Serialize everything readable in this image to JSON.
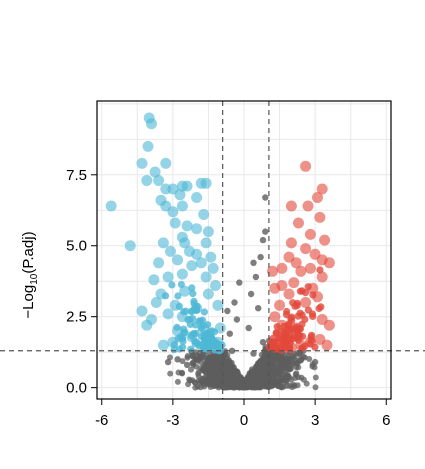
{
  "chart_data": {
    "type": "scatter",
    "title": "",
    "xlabel": "",
    "ylabel_parts": {
      "pre": "−Log",
      "sub": "10",
      "post": "(P.adj)"
    },
    "xlim": [
      -6.2,
      6.2
    ],
    "ylim": [
      -0.4,
      10.1
    ],
    "x_ticks": [
      -6,
      -3,
      0,
      3,
      6
    ],
    "y_ticks": [
      0.0,
      2.5,
      5.0,
      7.5
    ],
    "x_tick_labels": [
      "-6",
      "-3",
      "0",
      "3",
      "6"
    ],
    "y_tick_labels": [
      "0.0",
      "2.5",
      "5.0",
      "7.5"
    ],
    "grid": true,
    "thresholds": {
      "fc_low": -0.9,
      "fc_high": 1.05,
      "p": 1.3
    },
    "colors": {
      "down": "#4db8d6",
      "up": "#e2493b",
      "ns": "#5e5e5e",
      "grid": "#e8e8e8",
      "threshold": "#555555"
    },
    "series": [
      {
        "group": "down",
        "points": [
          [
            -3.9,
            9.3
          ],
          [
            -4.0,
            9.5
          ],
          [
            -4.05,
            8.5
          ],
          [
            -3.3,
            7.9
          ],
          [
            -4.3,
            7.9
          ],
          [
            -3.75,
            7.6
          ],
          [
            -3.6,
            7.3
          ],
          [
            -4.1,
            7.3
          ],
          [
            -3.3,
            7.0
          ],
          [
            -3.0,
            7.0
          ],
          [
            -2.6,
            7.1
          ],
          [
            -2.4,
            7.1
          ],
          [
            -1.8,
            7.2
          ],
          [
            -1.6,
            7.2
          ],
          [
            -2.7,
            6.8
          ],
          [
            -2.0,
            6.7
          ],
          [
            -3.5,
            6.6
          ],
          [
            -5.6,
            6.4
          ],
          [
            -3.3,
            6.4
          ],
          [
            -2.6,
            6.4
          ],
          [
            -3.0,
            6.2
          ],
          [
            -1.7,
            6.1
          ],
          [
            -2.9,
            5.8
          ],
          [
            -2.4,
            5.7
          ],
          [
            -2.0,
            5.6
          ],
          [
            -1.5,
            5.5
          ],
          [
            -2.6,
            5.3
          ],
          [
            -3.4,
            5.1
          ],
          [
            -2.5,
            5.1
          ],
          [
            -1.6,
            5.1
          ],
          [
            -4.8,
            5.0
          ],
          [
            -3.1,
            4.8
          ],
          [
            -2.3,
            4.8
          ],
          [
            -2.0,
            4.7
          ],
          [
            -1.4,
            4.6
          ],
          [
            -2.8,
            4.5
          ],
          [
            -3.6,
            4.4
          ],
          [
            -1.8,
            4.4
          ],
          [
            -2.2,
            4.3
          ],
          [
            -1.3,
            4.2
          ],
          [
            -3.8,
            3.8
          ],
          [
            -3.2,
            3.9
          ],
          [
            -2.6,
            4.0
          ],
          [
            -1.6,
            3.9
          ],
          [
            -1.2,
            3.6
          ],
          [
            -4.3,
            2.7
          ],
          [
            -3.9,
            2.4
          ],
          [
            -4.1,
            2.2
          ],
          [
            -3.7,
            3.0
          ],
          [
            -3.5,
            3.3
          ],
          [
            -2.9,
            2.9
          ],
          [
            -2.5,
            3.4
          ],
          [
            -1.5,
            3.3
          ],
          [
            -1.1,
            2.9
          ],
          [
            -1.0,
            2.1
          ],
          [
            -1.1,
            1.6
          ],
          [
            -1.4,
            1.5
          ],
          [
            -3.4,
            1.5
          ],
          [
            -3.0,
            1.6
          ],
          [
            -2.8,
            2.0
          ],
          [
            -2.2,
            1.8
          ],
          [
            -3.2,
            2.6
          ],
          [
            -2.6,
            2.5
          ],
          [
            -2.0,
            2.8
          ],
          [
            -1.7,
            2.1
          ]
        ]
      },
      {
        "group": "up",
        "points": [
          [
            2.6,
            7.8
          ],
          [
            3.3,
            7.0
          ],
          [
            3.1,
            6.7
          ],
          [
            2.7,
            6.4
          ],
          [
            2.0,
            6.4
          ],
          [
            3.2,
            6.0
          ],
          [
            2.3,
            5.8
          ],
          [
            2.8,
            5.4
          ],
          [
            3.4,
            5.2
          ],
          [
            2.0,
            5.1
          ],
          [
            2.6,
            4.9
          ],
          [
            3.0,
            4.7
          ],
          [
            3.3,
            4.5
          ],
          [
            1.9,
            4.6
          ],
          [
            2.2,
            4.4
          ],
          [
            3.6,
            4.4
          ],
          [
            2.8,
            4.2
          ],
          [
            1.6,
            4.2
          ],
          [
            2.4,
            4.1
          ],
          [
            1.2,
            4.1
          ],
          [
            3.3,
            3.9
          ],
          [
            2.1,
            3.7
          ],
          [
            1.6,
            3.6
          ],
          [
            2.9,
            3.5
          ],
          [
            1.3,
            3.5
          ],
          [
            3.1,
            3.2
          ],
          [
            1.9,
            3.3
          ],
          [
            2.6,
            3.0
          ],
          [
            1.5,
            2.9
          ],
          [
            3.3,
            2.4
          ],
          [
            3.6,
            2.2
          ],
          [
            2.2,
            2.1
          ],
          [
            3.2,
            1.7
          ],
          [
            3.5,
            1.5
          ],
          [
            2.8,
            1.6
          ],
          [
            2.4,
            1.5
          ],
          [
            1.6,
            2.2
          ],
          [
            1.3,
            2.5
          ],
          [
            1.8,
            1.7
          ],
          [
            2.0,
            1.4
          ]
        ]
      },
      {
        "group": "ns",
        "points": [
          [
            0.9,
            6.7
          ],
          [
            0.9,
            5.5
          ],
          [
            0.8,
            5.2
          ],
          [
            0.7,
            4.6
          ],
          [
            0.4,
            4.4
          ],
          [
            0.5,
            3.9
          ],
          [
            -0.2,
            3.7
          ],
          [
            0.3,
            3.3
          ],
          [
            -0.4,
            3.0
          ],
          [
            0.6,
            2.8
          ],
          [
            -0.7,
            2.7
          ],
          [
            -0.3,
            2.4
          ],
          [
            0.2,
            2.1
          ],
          [
            -0.6,
            1.9
          ],
          [
            0.8,
            1.6
          ],
          [
            -0.5,
            1.3
          ],
          [
            0.4,
            1.2
          ],
          [
            -1.2,
            1.1
          ],
          [
            -2.0,
            1.0
          ],
          [
            -2.8,
            1.0
          ],
          [
            1.6,
            1.0
          ],
          [
            2.4,
            1.0
          ],
          [
            -1.6,
            0.7
          ],
          [
            1.3,
            0.7
          ],
          [
            -0.8,
            0.5
          ],
          [
            0.6,
            0.4
          ],
          [
            -0.3,
            0.2
          ],
          [
            0.2,
            0.1
          ],
          [
            1.9,
            0.8
          ],
          [
            -2.4,
            0.8
          ],
          [
            3.0,
            0.9
          ],
          [
            -3.2,
            0.9
          ]
        ]
      }
    ]
  }
}
